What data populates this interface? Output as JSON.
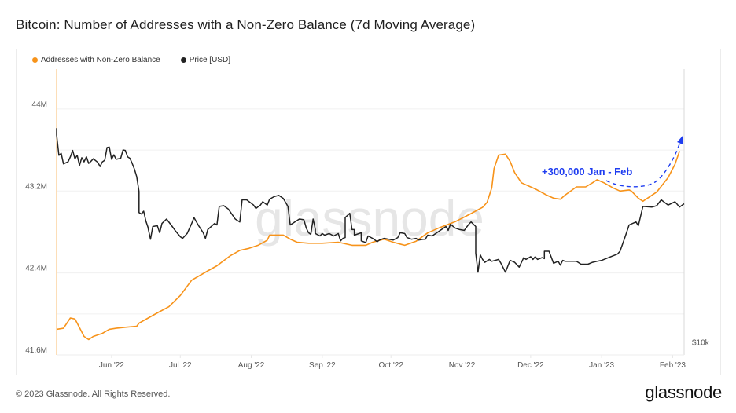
{
  "title": "Bitcoin: Number of Addresses with a Non-Zero Balance (7d Moving Average)",
  "footer": {
    "copyright": "© 2023 Glassnode. All Rights Reserved.",
    "logo_text": "glassnode"
  },
  "watermark": "glassnode",
  "colors": {
    "addresses": "#f7931a",
    "price": "#222222",
    "annotation": "#1f3df0",
    "grid": "#f0f0f0"
  },
  "chart_data": {
    "type": "line",
    "title": "Bitcoin: Number of Addresses with a Non-Zero Balance (7d Moving Average)",
    "x_unit": "days since 2022-06-01",
    "xlim": [
      -24,
      250
    ],
    "x_ticks": [
      {
        "label": "Jun '22",
        "day": 0
      },
      {
        "label": "Jul '22",
        "day": 30
      },
      {
        "label": "Aug '22",
        "day": 61
      },
      {
        "label": "Sep '22",
        "day": 92
      },
      {
        "label": "Oct '22",
        "day": 122
      },
      {
        "label": "Nov '22",
        "day": 153
      },
      {
        "label": "Dec '22",
        "day": 183
      },
      {
        "label": "Jan '23",
        "day": 214
      },
      {
        "label": "Feb '23",
        "day": 245
      }
    ],
    "y_left": {
      "label": "",
      "unit": "M",
      "ylim": [
        41.6,
        44.39
      ],
      "ticks": [
        {
          "label": "41.6M",
          "value": 41.6
        },
        {
          "label": "42.4M",
          "value": 42.4
        },
        {
          "label": "43.2M",
          "value": 43.2
        },
        {
          "label": "44M",
          "value": 44.0
        }
      ],
      "gridlines": [
        41.6,
        42.0,
        42.4,
        42.8,
        43.2,
        43.6,
        44.0
      ]
    },
    "y_right": {
      "scale": "log",
      "unit": "USD",
      "ylim": [
        9600,
        56000
      ],
      "ticks": [
        {
          "label": "$10k",
          "value": 10000
        }
      ]
    },
    "legend_position": "top-left",
    "series": [
      {
        "name": "Addresses with Non-Zero Balance",
        "axis": "left",
        "color": "#f7931a",
        "points": [
          [
            -24,
            41.85
          ],
          [
            -21,
            41.86
          ],
          [
            -18,
            41.96
          ],
          [
            -16,
            41.95
          ],
          [
            -15,
            41.91
          ],
          [
            -12,
            41.78
          ],
          [
            -10,
            41.75
          ],
          [
            -8,
            41.78
          ],
          [
            -4,
            41.81
          ],
          [
            -1,
            41.85
          ],
          [
            2,
            41.86
          ],
          [
            6,
            41.87
          ],
          [
            11,
            41.88
          ],
          [
            12,
            41.91
          ],
          [
            16,
            41.96
          ],
          [
            20,
            42.01
          ],
          [
            25,
            42.07
          ],
          [
            30,
            42.18
          ],
          [
            35,
            42.33
          ],
          [
            42,
            42.42
          ],
          [
            46,
            42.47
          ],
          [
            52,
            42.57
          ],
          [
            56,
            42.62
          ],
          [
            60,
            42.64
          ],
          [
            64,
            42.67
          ],
          [
            68,
            42.72
          ],
          [
            69,
            42.77
          ],
          [
            72,
            42.77
          ],
          [
            75,
            42.77
          ],
          [
            78,
            42.73
          ],
          [
            81,
            42.7
          ],
          [
            86,
            42.69
          ],
          [
            92,
            42.69
          ],
          [
            99,
            42.7
          ],
          [
            105,
            42.67
          ],
          [
            111,
            42.67
          ],
          [
            114,
            42.7
          ],
          [
            119,
            42.73
          ],
          [
            123,
            42.7
          ],
          [
            128,
            42.67
          ],
          [
            133,
            42.71
          ],
          [
            138,
            42.79
          ],
          [
            143,
            42.84
          ],
          [
            150,
            42.9
          ],
          [
            157,
            42.98
          ],
          [
            162,
            43.04
          ],
          [
            164,
            43.09
          ],
          [
            166,
            43.23
          ],
          [
            167,
            43.42
          ],
          [
            169,
            43.55
          ],
          [
            172,
            43.56
          ],
          [
            174,
            43.49
          ],
          [
            176,
            43.38
          ],
          [
            179,
            43.28
          ],
          [
            185,
            43.22
          ],
          [
            190,
            43.16
          ],
          [
            193,
            43.13
          ],
          [
            196,
            43.12
          ],
          [
            198,
            43.16
          ],
          [
            203,
            43.24
          ],
          [
            207,
            43.24
          ],
          [
            210,
            43.28
          ],
          [
            212,
            43.31
          ],
          [
            215,
            43.28
          ],
          [
            219,
            43.23
          ],
          [
            222,
            43.2
          ],
          [
            226,
            43.21
          ],
          [
            227,
            43.2
          ],
          [
            230,
            43.13
          ],
          [
            232,
            43.1
          ],
          [
            234,
            43.13
          ],
          [
            238,
            43.19
          ],
          [
            243,
            43.33
          ],
          [
            246,
            43.46
          ],
          [
            248,
            43.59
          ]
        ]
      },
      {
        "name": "Price [USD]",
        "axis": "right",
        "color": "#222222",
        "points": [
          [
            -24,
            38900
          ],
          [
            -24,
            37300
          ],
          [
            -23,
            32900
          ],
          [
            -22,
            33300
          ],
          [
            -21,
            31200
          ],
          [
            -19,
            31600
          ],
          [
            -18,
            32600
          ],
          [
            -17,
            33900
          ],
          [
            -16,
            32200
          ],
          [
            -15,
            32900
          ],
          [
            -14,
            30900
          ],
          [
            -13,
            32400
          ],
          [
            -12,
            31600
          ],
          [
            -11,
            32600
          ],
          [
            -10,
            31300
          ],
          [
            -9,
            31700
          ],
          [
            -8,
            32200
          ],
          [
            -6,
            31500
          ],
          [
            -5,
            30700
          ],
          [
            -4,
            31600
          ],
          [
            -3,
            31900
          ],
          [
            -2,
            34500
          ],
          [
            -1,
            34600
          ],
          [
            0,
            32100
          ],
          [
            1,
            33000
          ],
          [
            2,
            32100
          ],
          [
            4,
            32300
          ],
          [
            5,
            34000
          ],
          [
            6,
            33900
          ],
          [
            7,
            32600
          ],
          [
            8,
            32300
          ],
          [
            9,
            31300
          ],
          [
            10,
            30200
          ],
          [
            11,
            28800
          ],
          [
            12,
            26300
          ],
          [
            12,
            23100
          ],
          [
            13,
            22900
          ],
          [
            14,
            23300
          ],
          [
            15,
            21900
          ],
          [
            16,
            21000
          ],
          [
            16,
            20900
          ],
          [
            17,
            19600
          ],
          [
            18,
            21200
          ],
          [
            20,
            21300
          ],
          [
            21,
            20400
          ],
          [
            22,
            21600
          ],
          [
            24,
            22200
          ],
          [
            26,
            21400
          ],
          [
            28,
            20600
          ],
          [
            30,
            19900
          ],
          [
            31,
            19700
          ],
          [
            33,
            20300
          ],
          [
            35,
            21600
          ],
          [
            36,
            22400
          ],
          [
            38,
            21300
          ],
          [
            40,
            20400
          ],
          [
            41,
            19700
          ],
          [
            42,
            20800
          ],
          [
            45,
            21600
          ],
          [
            46,
            21400
          ],
          [
            47,
            24000
          ],
          [
            49,
            24100
          ],
          [
            51,
            23600
          ],
          [
            54,
            22200
          ],
          [
            56,
            21800
          ],
          [
            57,
            25000
          ],
          [
            59,
            25000
          ],
          [
            62,
            24200
          ],
          [
            63,
            23700
          ],
          [
            65,
            24200
          ],
          [
            66,
            24700
          ],
          [
            68,
            24200
          ],
          [
            69,
            25100
          ],
          [
            71,
            25500
          ],
          [
            73,
            25700
          ],
          [
            75,
            25200
          ],
          [
            77,
            24000
          ],
          [
            78,
            21400
          ],
          [
            80,
            21800
          ],
          [
            82,
            22200
          ],
          [
            84,
            22100
          ],
          [
            85,
            21000
          ],
          [
            86,
            20400
          ],
          [
            87,
            20200
          ],
          [
            88,
            22200
          ],
          [
            89,
            20800
          ],
          [
            89,
            20300
          ],
          [
            91,
            20000
          ],
          [
            92,
            20300
          ],
          [
            93,
            20100
          ],
          [
            95,
            20300
          ],
          [
            97,
            20000
          ],
          [
            99,
            20300
          ],
          [
            100,
            19400
          ],
          [
            101,
            19700
          ],
          [
            102,
            19800
          ],
          [
            102,
            22400
          ],
          [
            103,
            22700
          ],
          [
            104,
            23000
          ],
          [
            105,
            20800
          ],
          [
            106,
            20800
          ],
          [
            106,
            20100
          ],
          [
            109,
            20400
          ],
          [
            109,
            19400
          ],
          [
            111,
            19200
          ],
          [
            112,
            20000
          ],
          [
            114,
            19700
          ],
          [
            116,
            19300
          ],
          [
            117,
            19500
          ],
          [
            119,
            19700
          ],
          [
            121,
            19600
          ],
          [
            123,
            19500
          ],
          [
            125,
            19800
          ],
          [
            126,
            20400
          ],
          [
            128,
            20300
          ],
          [
            129,
            19800
          ],
          [
            130,
            19700
          ],
          [
            131,
            19600
          ],
          [
            133,
            19700
          ],
          [
            134,
            19500
          ],
          [
            136,
            19600
          ],
          [
            137,
            19600
          ],
          [
            138,
            20100
          ],
          [
            140,
            20000
          ],
          [
            146,
            21200
          ],
          [
            147,
            20700
          ],
          [
            148,
            21500
          ],
          [
            150,
            21000
          ],
          [
            152,
            20800
          ],
          [
            154,
            20700
          ],
          [
            156,
            21500
          ],
          [
            157,
            21800
          ],
          [
            159,
            21200
          ],
          [
            159,
            18000
          ],
          [
            160,
            16000
          ],
          [
            161,
            17800
          ],
          [
            162,
            17300
          ],
          [
            163,
            17000
          ],
          [
            165,
            17300
          ],
          [
            166,
            17100
          ],
          [
            169,
            17300
          ],
          [
            170,
            16900
          ],
          [
            172,
            16000
          ],
          [
            174,
            17200
          ],
          [
            176,
            17000
          ],
          [
            178,
            16500
          ],
          [
            180,
            17500
          ],
          [
            181,
            17300
          ],
          [
            183,
            17600
          ],
          [
            184,
            17300
          ],
          [
            185,
            17600
          ],
          [
            186,
            17300
          ],
          [
            188,
            17500
          ],
          [
            189,
            17400
          ],
          [
            189,
            18200
          ],
          [
            191,
            18200
          ],
          [
            193,
            16900
          ],
          [
            195,
            17100
          ],
          [
            196,
            16700
          ],
          [
            197,
            17200
          ],
          [
            198,
            17100
          ],
          [
            203,
            17100
          ],
          [
            205,
            16800
          ],
          [
            208,
            16800
          ],
          [
            210,
            17000
          ],
          [
            212,
            17100
          ],
          [
            214,
            17200
          ],
          [
            221,
            17900
          ],
          [
            222,
            18200
          ],
          [
            224,
            19700
          ],
          [
            226,
            21400
          ],
          [
            229,
            21800
          ],
          [
            230,
            21300
          ],
          [
            232,
            24000
          ],
          [
            236,
            23900
          ],
          [
            238,
            24100
          ],
          [
            240,
            25000
          ],
          [
            243,
            24200
          ],
          [
            246,
            24700
          ],
          [
            248,
            23900
          ],
          [
            250,
            24400
          ]
        ]
      }
    ],
    "annotations": [
      {
        "text": "+300,000 Jan - Feb",
        "type": "dashed-arrow",
        "from_day": 216,
        "to_day": 249,
        "color": "#1f3df0"
      }
    ]
  }
}
